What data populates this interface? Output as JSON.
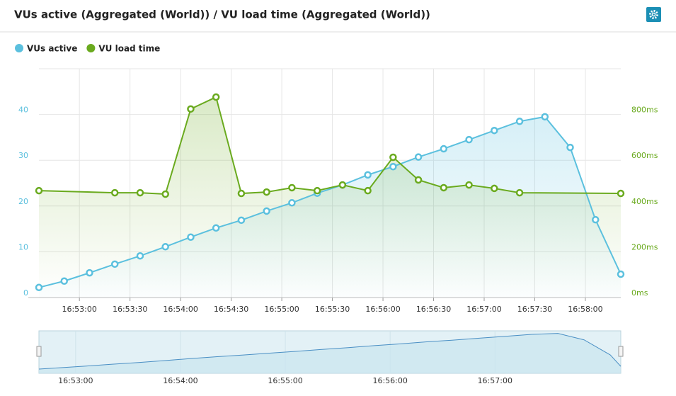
{
  "chart_data": {
    "type": "line",
    "title": "VUs active (Aggregated (World)) / VU load time (Aggregated (World))",
    "legend": "top-left",
    "grid": true,
    "xlim": [
      "16:52:36",
      "16:58:21"
    ],
    "xticks": [
      "16:53:00",
      "16:53:30",
      "16:54:00",
      "16:54:30",
      "16:55:00",
      "16:55:30",
      "16:56:00",
      "16:56:30",
      "16:57:00",
      "16:57:30",
      "16:58:00"
    ],
    "ylim": [
      0,
      50
    ],
    "yticks": [
      0,
      10,
      20,
      30,
      40
    ],
    "y2lim": [
      0,
      1000
    ],
    "y2ticks": [
      {
        "value": 0,
        "label": "0ms"
      },
      {
        "value": 200,
        "label": "200ms"
      },
      {
        "value": 400,
        "label": "400ms"
      },
      {
        "value": 600,
        "label": "600ms"
      },
      {
        "value": 800,
        "label": "800ms"
      }
    ],
    "series": [
      {
        "name": "VUs active",
        "color": "#5bc0de",
        "x": [
          "16:52:36",
          "16:52:51",
          "16:53:06",
          "16:53:21",
          "16:53:36",
          "16:53:51",
          "16:54:06",
          "16:54:21",
          "16:54:36",
          "16:54:51",
          "16:55:06",
          "16:55:21",
          "16:55:36",
          "16:55:51",
          "16:56:06",
          "16:56:21",
          "16:56:36",
          "16:56:51",
          "16:57:06",
          "16:57:21",
          "16:57:36",
          "16:57:51",
          "16:58:06",
          "16:58:21"
        ],
        "values": [
          2.2,
          3.6,
          5.4,
          7.3,
          9.1,
          11.1,
          13.2,
          15.2,
          16.9,
          18.9,
          20.7,
          22.8,
          24.6,
          26.8,
          28.6,
          30.7,
          32.5,
          34.5,
          36.5,
          38.5,
          39.5,
          32.8,
          17.0,
          5.1
        ]
      },
      {
        "name": "VU load time",
        "color": "#6aaa1e",
        "axis": "y2",
        "x": [
          "16:52:36",
          "16:53:21",
          "16:53:36",
          "16:53:51",
          "16:54:06",
          "16:54:21",
          "16:54:36",
          "16:54:51",
          "16:55:06",
          "16:55:21",
          "16:55:36",
          "16:55:51",
          "16:56:06",
          "16:56:21",
          "16:56:36",
          "16:56:51",
          "16:57:06",
          "16:57:21",
          "16:58:21"
        ],
        "values": [
          467,
          458,
          458,
          452,
          824,
          876,
          455,
          461,
          480,
          467,
          492,
          467,
          613,
          514,
          480,
          492,
          477,
          458,
          455
        ]
      }
    ],
    "navigator": {
      "xlim": [
        "16:52:39",
        "16:58:12"
      ],
      "xticks": [
        "16:53:00",
        "16:54:00",
        "16:55:00",
        "16:56:00",
        "16:57:00"
      ]
    }
  }
}
